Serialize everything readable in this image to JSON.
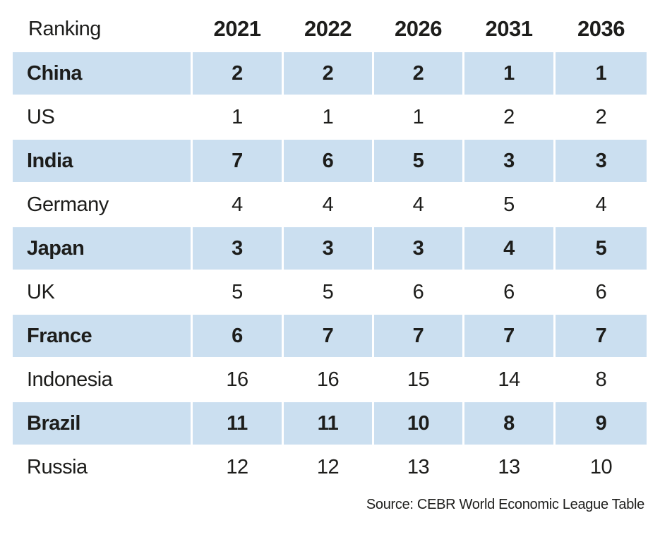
{
  "chart_data": {
    "type": "table",
    "title": "Ranking",
    "columns": [
      "Ranking",
      "2021",
      "2022",
      "2026",
      "2031",
      "2036"
    ],
    "rows": [
      [
        "China",
        2,
        2,
        2,
        1,
        1
      ],
      [
        "US",
        1,
        1,
        1,
        2,
        2
      ],
      [
        "India",
        7,
        6,
        5,
        3,
        3
      ],
      [
        "Germany",
        4,
        4,
        4,
        5,
        4
      ],
      [
        "Japan",
        3,
        3,
        3,
        4,
        5
      ],
      [
        "UK",
        5,
        5,
        6,
        6,
        6
      ],
      [
        "France",
        6,
        7,
        7,
        7,
        7
      ],
      [
        "Indonesia",
        16,
        16,
        15,
        14,
        8
      ],
      [
        "Brazil",
        11,
        11,
        10,
        8,
        9
      ],
      [
        "Russia",
        12,
        12,
        13,
        13,
        10
      ]
    ],
    "highlighted_rows": [
      "China",
      "India",
      "Japan",
      "France",
      "Brazil"
    ],
    "source": "Source: CEBR World Economic League Table"
  },
  "colors": {
    "highlight_row_bg": "#cbdff0",
    "text": "#1d1d1b",
    "background": "#ffffff"
  }
}
